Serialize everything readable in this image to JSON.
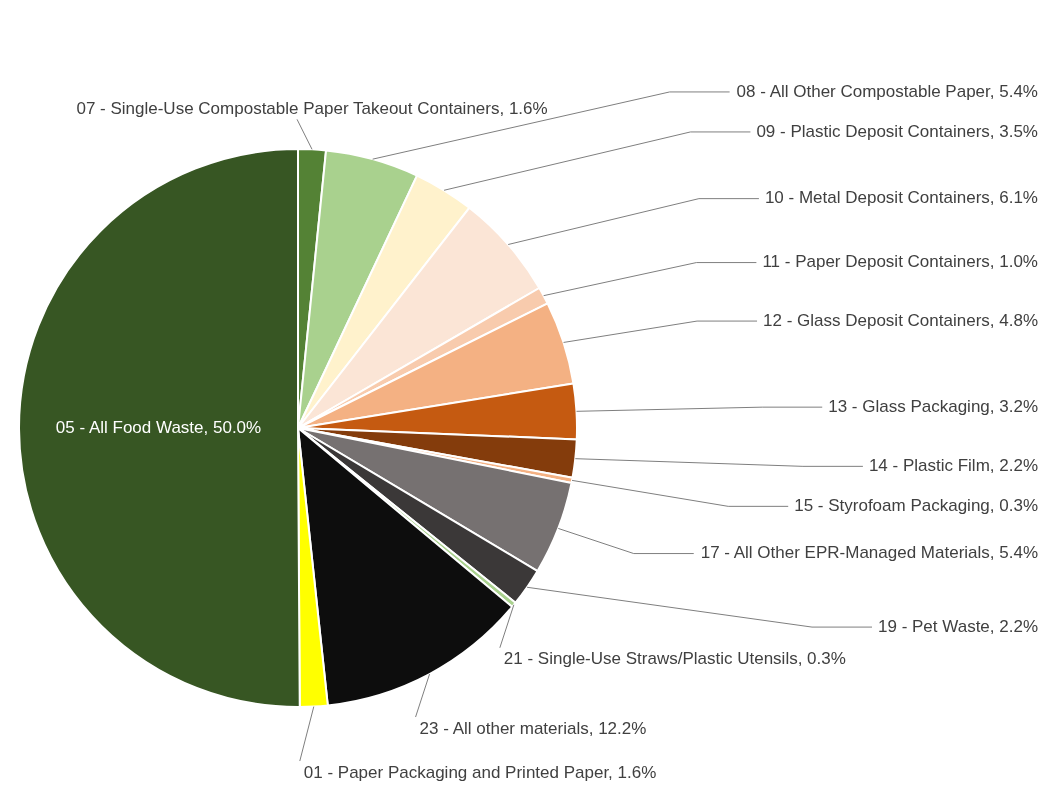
{
  "chart_data": {
    "type": "pie",
    "categories": [
      "07 - Single-Use Compostable Paper Takeout Containers",
      "08 - All Other Compostable Paper",
      "09 - Plastic Deposit Containers",
      "10 - Metal Deposit Containers",
      "11 - Paper Deposit Containers",
      "12 - Glass Deposit Containers",
      "13 - Glass Packaging",
      "14 - Plastic Film",
      "15 - Styrofoam Packaging",
      "17 - All Other EPR-Managed Materials",
      "19 - Pet Waste",
      "21 - Single-Use Straws/Plastic Utensils",
      "23 - All other materials",
      "01 - Paper Packaging and Printed Paper",
      "05 - All Food Waste"
    ],
    "values": [
      1.6,
      5.4,
      3.5,
      6.1,
      1.0,
      4.8,
      3.2,
      2.2,
      0.3,
      5.4,
      2.2,
      0.3,
      12.2,
      1.6,
      50.0
    ],
    "value_labels": [
      "1.6%",
      "5.4%",
      "3.5%",
      "6.1%",
      "1.0%",
      "4.8%",
      "3.2%",
      "2.2%",
      "0.3%",
      "5.4%",
      "2.2%",
      "0.3%",
      "12.2%",
      "1.6%",
      "50.0%"
    ],
    "colors": [
      "#548235",
      "#a9d18e",
      "#fff2cc",
      "#fbe5d6",
      "#f8cbad",
      "#f4b183",
      "#c55a11",
      "#843c0c",
      "#f4b183",
      "#767171",
      "#3b3838",
      "#a9d18e",
      "#0d0d0d",
      "#ffff00",
      "#375623"
    ],
    "legend": false
  }
}
